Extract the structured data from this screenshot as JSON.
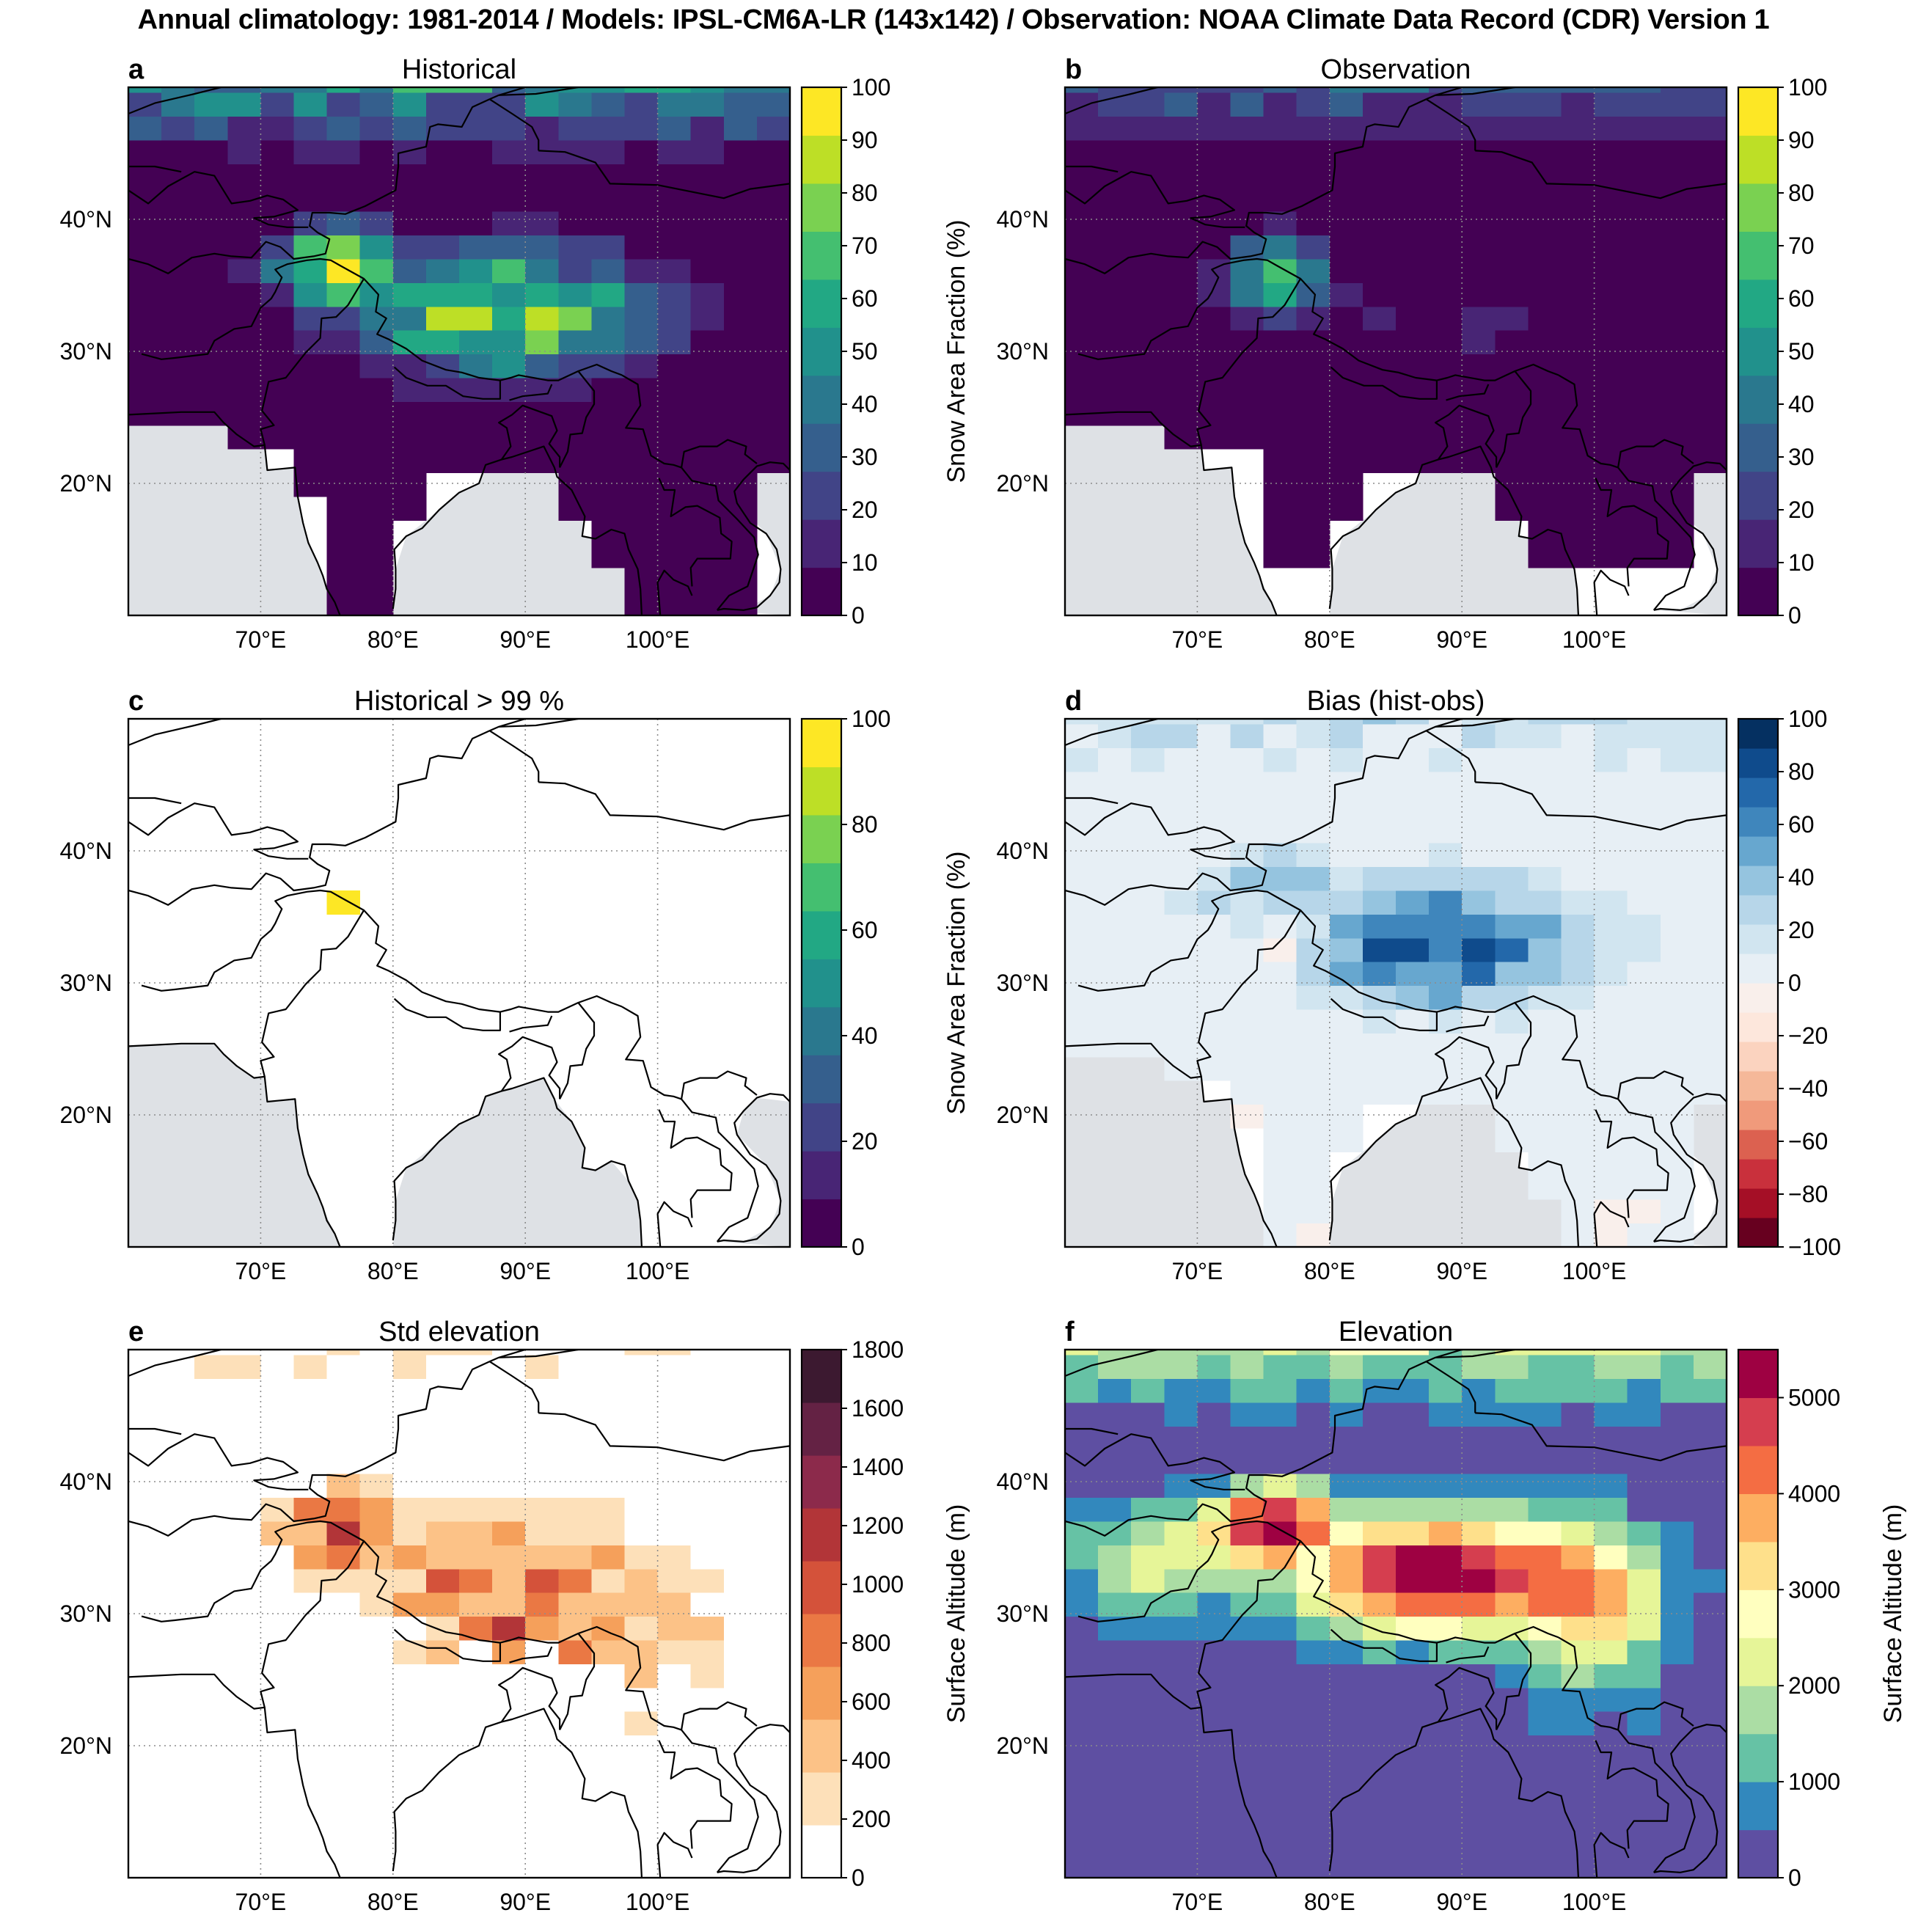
{
  "title": "Annual climatology: 1981-2014 / Models: IPSL-CM6A-LR (143x142) / Observation: NOAA Climate Data Record (CDR) Version 1",
  "colors": {
    "land_mask": "#dee1e5",
    "coastline": "#000000",
    "gridline": "#8c8c8c",
    "viridis": [
      "#440154",
      "#482575",
      "#414487",
      "#355f8d",
      "#2a788e",
      "#21918c",
      "#22a884",
      "#44bf70",
      "#7ad151",
      "#bddf26",
      "#fde725"
    ],
    "rdbu": [
      "#67001f",
      "#a50f26",
      "#c9303c",
      "#dc6150",
      "#f09a7b",
      "#f5b899",
      "#fbd3bf",
      "#fde7dc",
      "#f9efeb",
      "#e7eff5",
      "#d1e5f0",
      "#b7d6e9",
      "#95c4df",
      "#67a7cf",
      "#3f86bc",
      "#2368aa",
      "#0f4b8c",
      "#053061"
    ],
    "oranges": [
      "#ffffff",
      "#fde0b9",
      "#fcc287",
      "#f5a05b",
      "#ea7844",
      "#d4523a",
      "#b23538",
      "#8c2a4b",
      "#642244",
      "#3c1930"
    ],
    "spectral": [
      "#5e4fa2",
      "#3288bd",
      "#66c2a5",
      "#abdda4",
      "#e6f598",
      "#ffffbf",
      "#fee08b",
      "#fdae61",
      "#f46d43",
      "#d53e4f",
      "#9e0142"
    ]
  },
  "chart_data": [
    {
      "id": "a",
      "type": "heatmap",
      "title": "Historical",
      "colorbar": {
        "label": "Snow Area Fraction (%)",
        "ticks": [
          "0",
          "10",
          "20",
          "30",
          "40",
          "50",
          "60",
          "70",
          "80",
          "90",
          "100"
        ],
        "range": [
          0,
          100
        ]
      },
      "x_ticks": [
        "70°E",
        "80°E",
        "90°E",
        "100°E"
      ],
      "y_ticks": [
        "20°N",
        "30°N",
        "40°N"
      ],
      "xlim": [
        60,
        110
      ],
      "ylim": [
        10,
        50
      ]
    },
    {
      "id": "b",
      "type": "heatmap",
      "title": "Observation",
      "colorbar": {
        "label": "",
        "ticks": [
          "0",
          "10",
          "20",
          "30",
          "40",
          "50",
          "60",
          "70",
          "80",
          "90",
          "100"
        ],
        "range": [
          0,
          100
        ]
      },
      "x_ticks": [
        "70°E",
        "80°E",
        "90°E",
        "100°E"
      ],
      "y_ticks": [
        "20°N",
        "30°N",
        "40°N"
      ],
      "xlim": [
        60,
        110
      ],
      "ylim": [
        10,
        50
      ]
    },
    {
      "id": "c",
      "type": "heatmap",
      "title": "Historical > 99 %",
      "colorbar": {
        "label": "Snow Area Fraction (%)",
        "ticks": [
          "0",
          "20",
          "40",
          "60",
          "80",
          "100"
        ],
        "range": [
          0,
          100
        ]
      },
      "x_ticks": [
        "70°E",
        "80°E",
        "90°E",
        "100°E"
      ],
      "y_ticks": [
        "20°N",
        "30°N",
        "40°N"
      ],
      "xlim": [
        60,
        110
      ],
      "ylim": [
        10,
        50
      ]
    },
    {
      "id": "d",
      "type": "heatmap",
      "title": "Bias (hist-obs)",
      "colorbar": {
        "label": "",
        "ticks": [
          "100",
          "80",
          "60",
          "40",
          "20",
          "0",
          "−20",
          "−40",
          "−60",
          "−80",
          "−100"
        ],
        "range": [
          -100,
          100
        ]
      },
      "x_ticks": [
        "70°E",
        "80°E",
        "90°E",
        "100°E"
      ],
      "y_ticks": [
        "20°N",
        "30°N",
        "40°N"
      ],
      "xlim": [
        60,
        110
      ],
      "ylim": [
        10,
        50
      ]
    },
    {
      "id": "e",
      "type": "heatmap",
      "title": "Std elevation",
      "colorbar": {
        "label": "Surface Altitude (m)",
        "ticks": [
          "0",
          "200",
          "400",
          "600",
          "800",
          "1000",
          "1200",
          "1400",
          "1600",
          "1800"
        ],
        "range": [
          0,
          1800
        ]
      },
      "x_ticks": [
        "70°E",
        "80°E",
        "90°E",
        "100°E"
      ],
      "y_ticks": [
        "20°N",
        "30°N",
        "40°N"
      ],
      "xlim": [
        60,
        110
      ],
      "ylim": [
        10,
        50
      ]
    },
    {
      "id": "f",
      "type": "heatmap",
      "title": "Elevation",
      "colorbar": {
        "label": "Surface Altitude (m)",
        "ticks": [
          "0",
          "1000",
          "2000",
          "3000",
          "4000",
          "5000"
        ],
        "range": [
          0,
          5500
        ]
      },
      "x_ticks": [
        "70°E",
        "80°E",
        "90°E",
        "100°E"
      ],
      "y_ticks": [
        "20°N",
        "30°N",
        "40°N"
      ],
      "xlim": [
        60,
        110
      ],
      "ylim": [
        10,
        50
      ]
    }
  ]
}
